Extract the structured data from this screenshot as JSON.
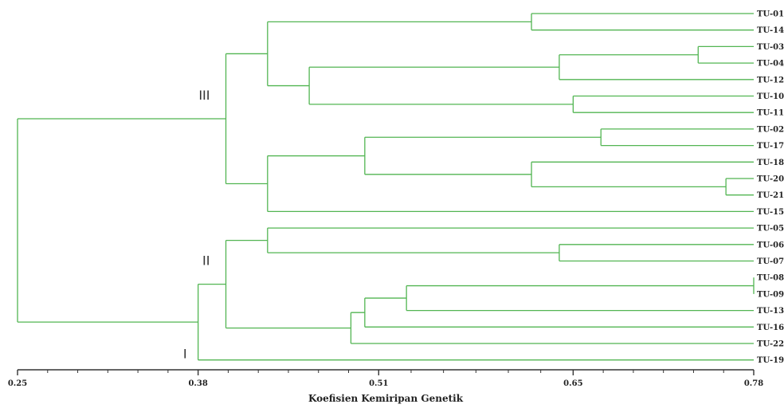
{
  "chart_data": {
    "type": "dendrogram",
    "xlabel": "Koefisien Kemiripan Genetik",
    "xlim": [
      0.25,
      0.78
    ],
    "ticks": [
      "0.25",
      "0.38",
      "0.51",
      "0.65",
      "0.78"
    ],
    "tick_values": [
      0.25,
      0.38,
      0.51,
      0.65,
      0.78
    ],
    "leaves": [
      "TU-01",
      "TU-14",
      "TU-03",
      "TU-04",
      "TU-12",
      "TU-10",
      "TU-11",
      "TU-02",
      "TU-17",
      "TU-18",
      "TU-20",
      "TU-21",
      "TU-15",
      "TU-05",
      "TU-06",
      "TU-07",
      "TU-08",
      "TU-09",
      "TU-13",
      "TU-16",
      "TU-22",
      "TU-19"
    ],
    "merges": [
      {
        "id": "m1",
        "children": [
          "TU-01",
          "TU-14"
        ],
        "height": 0.62
      },
      {
        "id": "m2",
        "children": [
          "TU-03",
          "TU-04"
        ],
        "height": 0.74
      },
      {
        "id": "m3",
        "children": [
          "m2",
          "TU-12"
        ],
        "height": 0.64
      },
      {
        "id": "m4",
        "children": [
          "TU-10",
          "TU-11"
        ],
        "height": 0.65
      },
      {
        "id": "m5",
        "children": [
          "m3",
          "m4"
        ],
        "height": 0.46
      },
      {
        "id": "m6",
        "children": [
          "m1",
          "m5"
        ],
        "height": 0.43
      },
      {
        "id": "m7",
        "children": [
          "TU-02",
          "TU-17"
        ],
        "height": 0.67
      },
      {
        "id": "m8",
        "children": [
          "TU-20",
          "TU-21"
        ],
        "height": 0.76
      },
      {
        "id": "m9",
        "children": [
          "TU-18",
          "m8"
        ],
        "height": 0.62
      },
      {
        "id": "m10",
        "children": [
          "m7",
          "m9"
        ],
        "height": 0.5
      },
      {
        "id": "m11",
        "children": [
          "m10",
          "TU-15"
        ],
        "height": 0.43
      },
      {
        "id": "m12",
        "children": [
          "m6",
          "m11"
        ],
        "height": 0.4
      },
      {
        "id": "m13",
        "children": [
          "TU-06",
          "TU-07"
        ],
        "height": 0.64
      },
      {
        "id": "m14",
        "children": [
          "TU-05",
          "m13"
        ],
        "height": 0.43
      },
      {
        "id": "m15",
        "children": [
          "TU-08",
          "TU-09"
        ],
        "height": 0.78
      },
      {
        "id": "m16",
        "children": [
          "m15",
          "TU-13"
        ],
        "height": 0.53
      },
      {
        "id": "m17",
        "children": [
          "m16",
          "TU-16"
        ],
        "height": 0.5
      },
      {
        "id": "m18",
        "children": [
          "m17",
          "TU-22"
        ],
        "height": 0.49
      },
      {
        "id": "m19",
        "children": [
          "m14",
          "m18"
        ],
        "height": 0.4
      },
      {
        "id": "m20",
        "children": [
          "m19",
          "TU-19"
        ],
        "height": 0.38
      },
      {
        "id": "m21",
        "children": [
          "m12",
          "m20"
        ],
        "height": 0.25
      }
    ],
    "groups": [
      {
        "label": "III",
        "node": "m12"
      },
      {
        "label": "II",
        "node": "m19"
      },
      {
        "label": "I",
        "leaf": "TU-19"
      }
    ],
    "line_color": "#52b552"
  }
}
